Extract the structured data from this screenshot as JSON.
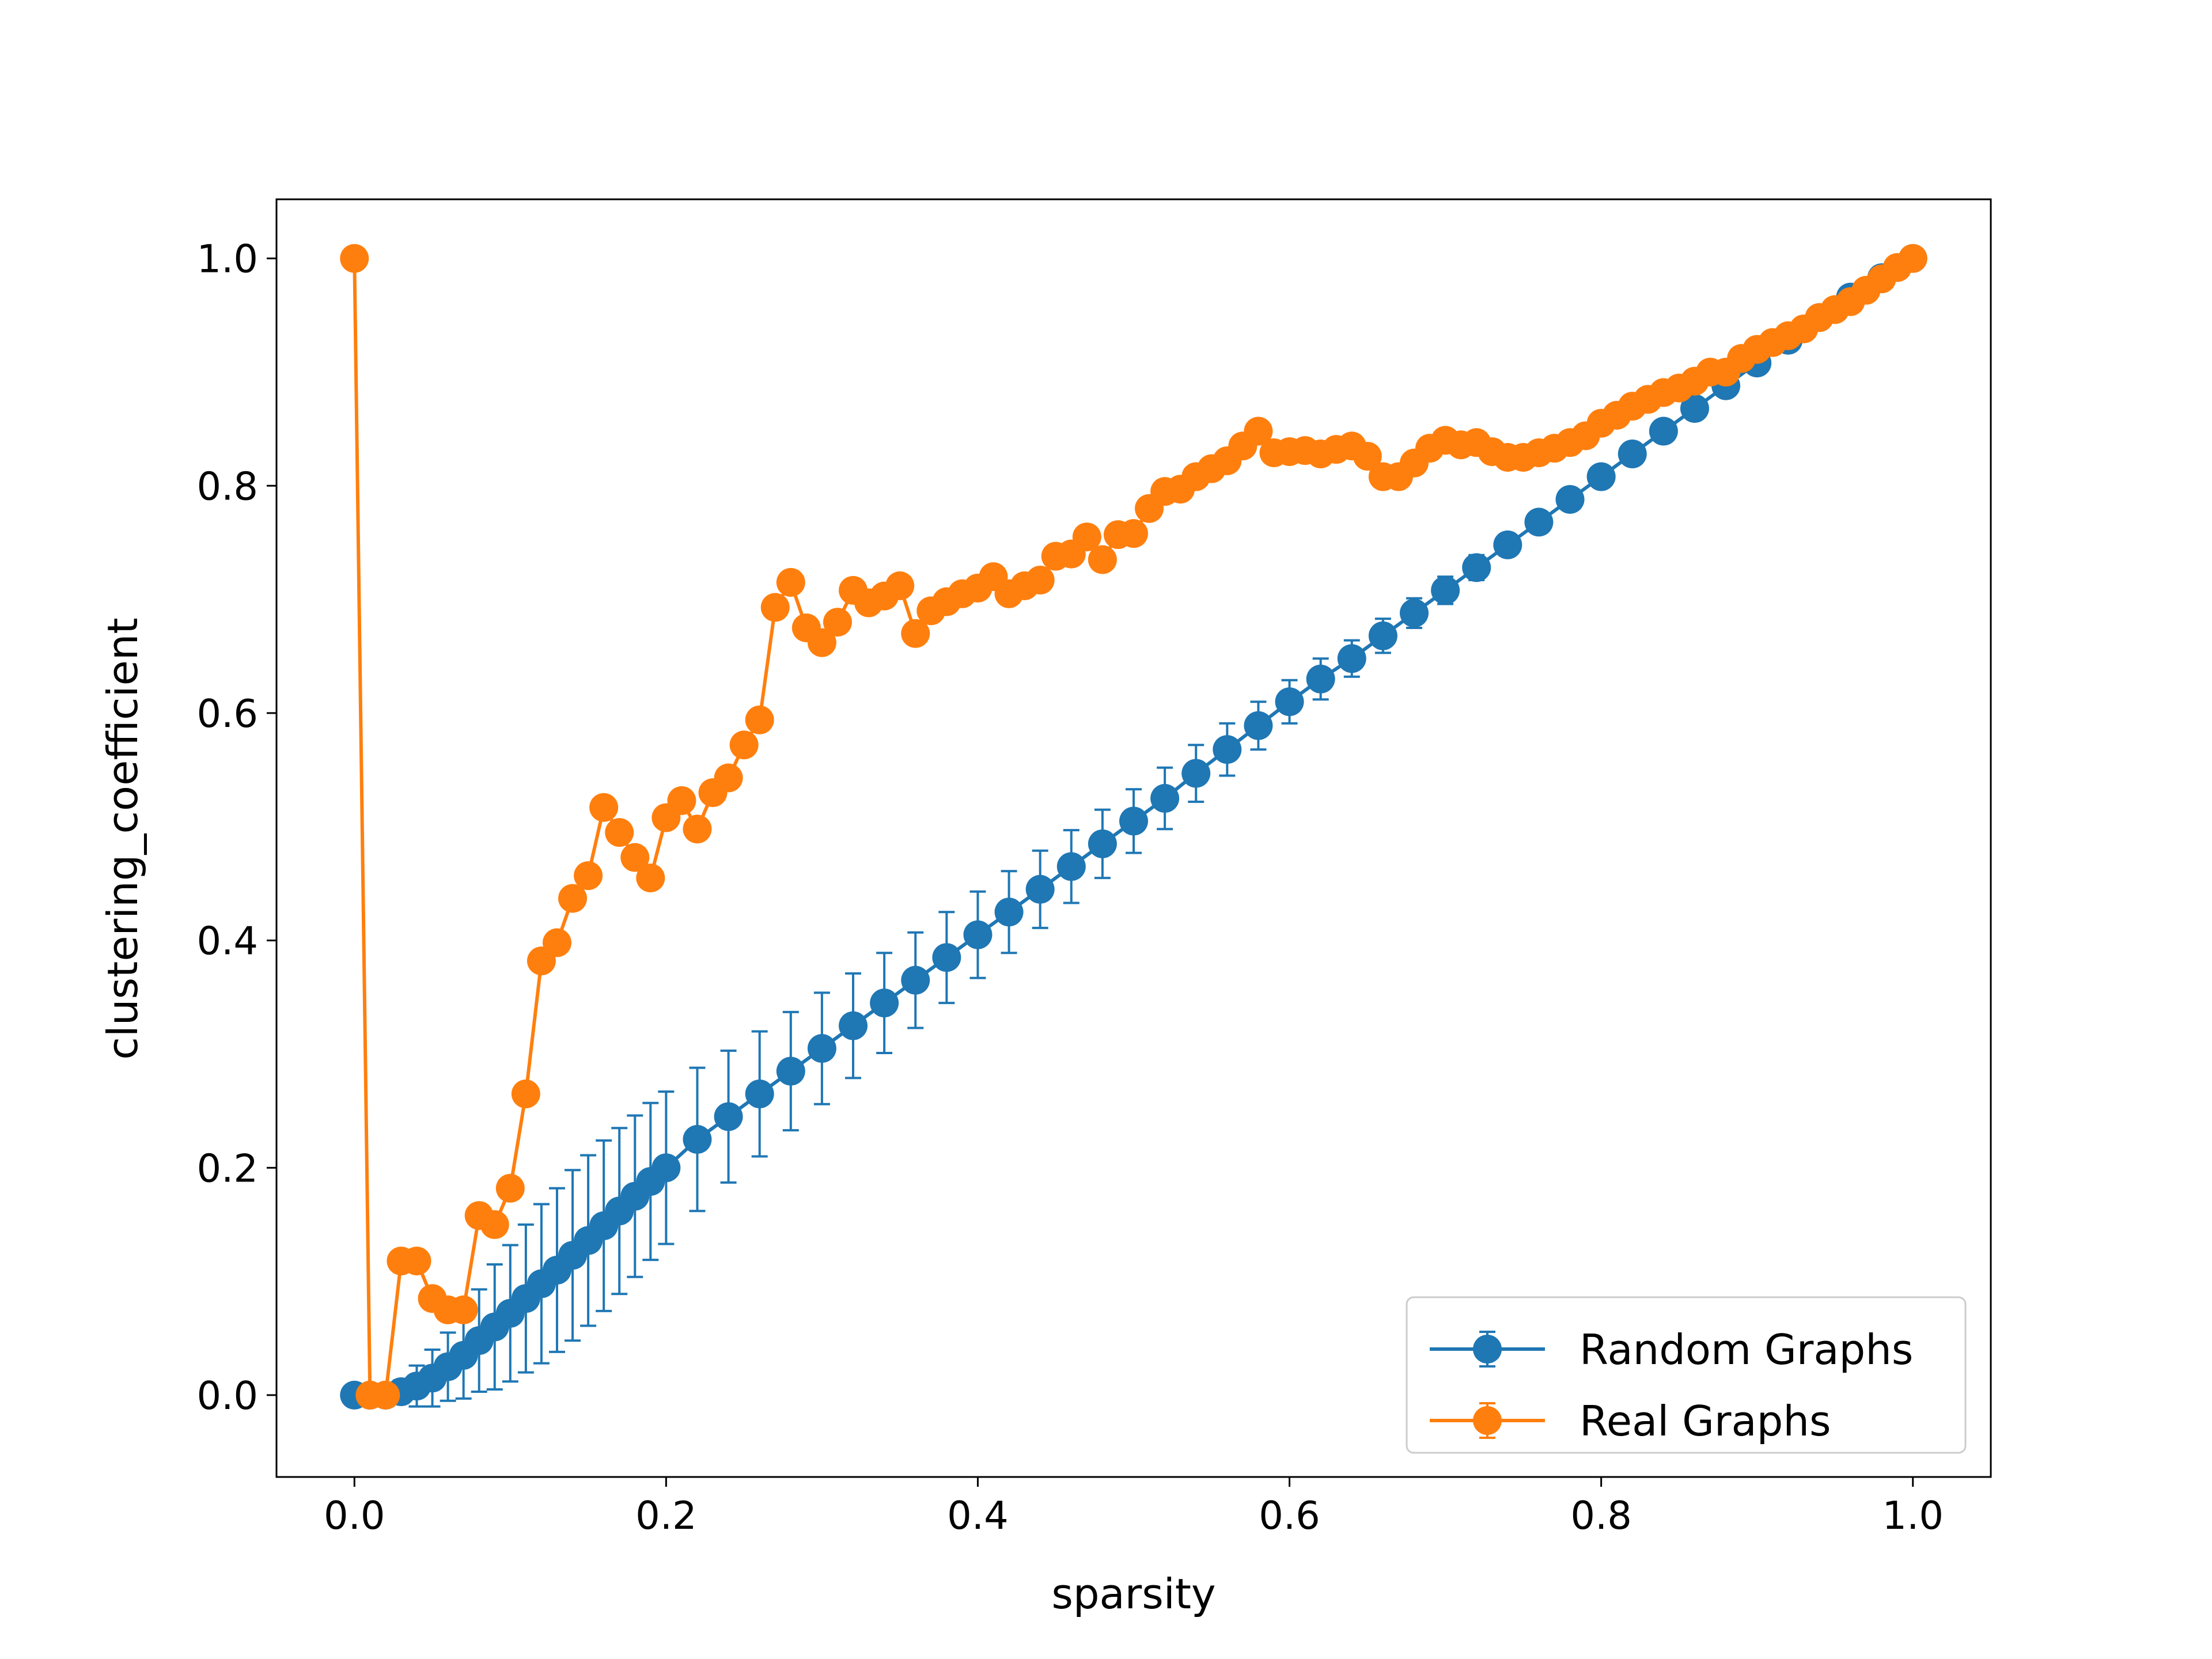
{
  "chart_data": {
    "type": "line",
    "xlabel": "sparsity",
    "ylabel": "clustering_coefficient",
    "xlim": [
      -0.05,
      1.05
    ],
    "ylim": [
      -0.072,
      1.052
    ],
    "xticks": [
      "0.0",
      "0.2",
      "0.4",
      "0.6",
      "0.8",
      "1.0"
    ],
    "yticks": [
      "0.0",
      "0.2",
      "0.4",
      "0.6",
      "0.8",
      "1.0"
    ],
    "grid": false,
    "legend_position": "lower right",
    "series": [
      {
        "name": "Random Graphs",
        "color": "#1f77b4",
        "marker": "circle",
        "error_bars": true,
        "x": [
          0.0,
          0.01,
          0.02,
          0.03,
          0.04,
          0.05,
          0.06,
          0.07,
          0.08,
          0.09,
          0.1,
          0.11,
          0.12,
          0.13,
          0.14,
          0.15,
          0.16,
          0.17,
          0.18,
          0.19,
          0.2,
          0.22,
          0.24,
          0.26,
          0.28,
          0.3,
          0.32,
          0.34,
          0.36,
          0.38,
          0.4,
          0.42,
          0.44,
          0.46,
          0.48,
          0.5,
          0.52,
          0.54,
          0.56,
          0.58,
          0.6,
          0.62,
          0.64,
          0.66,
          0.68,
          0.7,
          0.72,
          0.74,
          0.76,
          0.78,
          0.8,
          0.82,
          0.84,
          0.86,
          0.88,
          0.9,
          0.92,
          0.94,
          0.96,
          0.98,
          1.0
        ],
        "y": [
          0.0,
          0.0,
          0.0,
          0.003,
          0.008,
          0.015,
          0.025,
          0.035,
          0.048,
          0.06,
          0.072,
          0.085,
          0.098,
          0.11,
          0.123,
          0.136,
          0.149,
          0.162,
          0.175,
          0.188,
          0.2,
          0.225,
          0.245,
          0.265,
          0.285,
          0.305,
          0.325,
          0.345,
          0.365,
          0.385,
          0.405,
          0.425,
          0.445,
          0.465,
          0.485,
          0.505,
          0.525,
          0.547,
          0.568,
          0.589,
          0.61,
          0.63,
          0.648,
          0.668,
          0.688,
          0.708,
          0.728,
          0.748,
          0.768,
          0.788,
          0.808,
          0.828,
          0.848,
          0.868,
          0.888,
          0.908,
          0.928,
          0.948,
          0.966,
          0.983,
          1.0
        ],
        "error": [
          0.0,
          0.0,
          0.0,
          0.01,
          0.018,
          0.025,
          0.03,
          0.038,
          0.045,
          0.055,
          0.06,
          0.065,
          0.07,
          0.072,
          0.075,
          0.075,
          0.075,
          0.073,
          0.071,
          0.069,
          0.067,
          0.063,
          0.058,
          0.055,
          0.052,
          0.049,
          0.046,
          0.044,
          0.042,
          0.04,
          0.038,
          0.036,
          0.034,
          0.032,
          0.03,
          0.028,
          0.027,
          0.025,
          0.023,
          0.021,
          0.019,
          0.018,
          0.016,
          0.015,
          0.013,
          0.012,
          0.011,
          0.009,
          0.008,
          0.007,
          0.006,
          0.005,
          0.005,
          0.004,
          0.003,
          0.003,
          0.002,
          0.002,
          0.001,
          0.001,
          0.0
        ]
      },
      {
        "name": "Real Graphs",
        "color": "#ff7f0e",
        "marker": "circle",
        "error_bars": false,
        "x": [
          0.0,
          0.01,
          0.02,
          0.03,
          0.04,
          0.05,
          0.06,
          0.07,
          0.08,
          0.09,
          0.1,
          0.11,
          0.12,
          0.13,
          0.14,
          0.15,
          0.16,
          0.17,
          0.18,
          0.19,
          0.2,
          0.21,
          0.22,
          0.23,
          0.24,
          0.25,
          0.26,
          0.27,
          0.28,
          0.29,
          0.3,
          0.31,
          0.32,
          0.33,
          0.34,
          0.35,
          0.36,
          0.37,
          0.38,
          0.39,
          0.4,
          0.41,
          0.42,
          0.43,
          0.44,
          0.45,
          0.46,
          0.47,
          0.48,
          0.49,
          0.5,
          0.51,
          0.52,
          0.53,
          0.54,
          0.55,
          0.56,
          0.57,
          0.58,
          0.59,
          0.6,
          0.61,
          0.62,
          0.63,
          0.64,
          0.65,
          0.66,
          0.67,
          0.68,
          0.69,
          0.7,
          0.71,
          0.72,
          0.73,
          0.74,
          0.75,
          0.76,
          0.77,
          0.78,
          0.79,
          0.8,
          0.81,
          0.82,
          0.83,
          0.84,
          0.85,
          0.86,
          0.87,
          0.88,
          0.89,
          0.9,
          0.91,
          0.92,
          0.93,
          0.94,
          0.95,
          0.96,
          0.97,
          0.98,
          0.99,
          1.0
        ],
        "y": [
          1.0,
          0.0,
          0.0,
          0.118,
          0.118,
          0.085,
          0.075,
          0.075,
          0.158,
          0.15,
          0.182,
          0.265,
          0.382,
          0.398,
          0.437,
          0.457,
          0.517,
          0.495,
          0.473,
          0.455,
          0.508,
          0.523,
          0.498,
          0.53,
          0.543,
          0.572,
          0.594,
          0.693,
          0.715,
          0.675,
          0.662,
          0.68,
          0.708,
          0.697,
          0.703,
          0.712,
          0.67,
          0.69,
          0.698,
          0.705,
          0.71,
          0.72,
          0.705,
          0.712,
          0.717,
          0.738,
          0.74,
          0.755,
          0.735,
          0.757,
          0.758,
          0.78,
          0.795,
          0.797,
          0.808,
          0.815,
          0.822,
          0.835,
          0.848,
          0.829,
          0.83,
          0.831,
          0.828,
          0.832,
          0.835,
          0.826,
          0.808,
          0.808,
          0.82,
          0.833,
          0.84,
          0.836,
          0.838,
          0.83,
          0.825,
          0.825,
          0.829,
          0.833,
          0.838,
          0.844,
          0.855,
          0.862,
          0.87,
          0.876,
          0.882,
          0.886,
          0.892,
          0.9,
          0.9,
          0.912,
          0.92,
          0.926,
          0.932,
          0.938,
          0.948,
          0.955,
          0.962,
          0.972,
          0.982,
          0.992,
          1.0
        ]
      }
    ]
  }
}
